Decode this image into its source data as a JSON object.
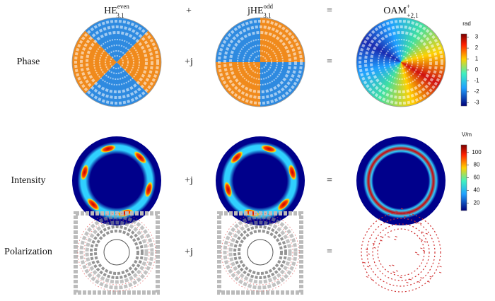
{
  "headers": [
    {
      "base": "HE",
      "sup": "even",
      "sub": "3,1"
    },
    {
      "base": "jHE",
      "sup": "odd",
      "sub": "3,1"
    },
    {
      "base": "OAM",
      "sup": "+",
      "sub": "+2,1"
    }
  ],
  "header_operators": [
    "+",
    "="
  ],
  "rows": [
    {
      "label": "Phase",
      "operators": [
        "+j",
        "="
      ]
    },
    {
      "label": "Intensity",
      "operators": [
        "+j",
        "="
      ]
    },
    {
      "label": "Polarization",
      "operators": [
        "+j",
        "="
      ]
    }
  ],
  "colorbars": {
    "phase": {
      "unit": "rad",
      "ticks": [
        3,
        2,
        1,
        0,
        -1,
        -2,
        -3
      ],
      "lim": [
        -3.3,
        3.3
      ]
    },
    "intensity": {
      "unit": "V/m",
      "ticks": [
        100,
        80,
        60,
        40,
        20
      ],
      "lim": [
        8,
        112
      ]
    }
  }
}
